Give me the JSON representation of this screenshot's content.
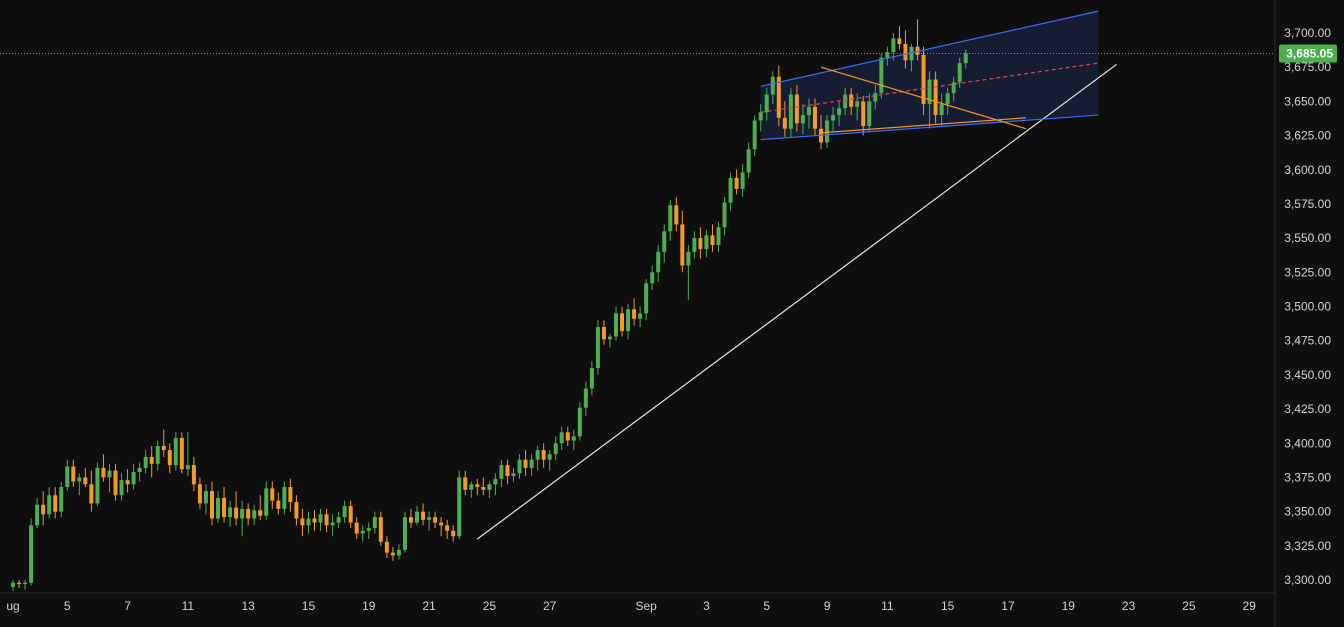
{
  "colors": {
    "background": "#0e0e0e",
    "up": "#4caf50",
    "down": "#f59a23",
    "trendline": "#e6e6e6",
    "channel": "#3d6bff",
    "channel_fill": "#1a2340",
    "channel_mid": "#e0455a",
    "wedge": "#f59a23",
    "last_price_line": "#4caf50",
    "axis_text": "#d1d4dc"
  },
  "chart_data": {
    "type": "candlestick",
    "title": "",
    "y_axis": {
      "range": [
        3290,
        3725
      ],
      "ticks": [
        "3,300.00",
        "3,325.00",
        "3,350.00",
        "3,375.00",
        "3,400.00",
        "3,425.00",
        "3,450.00",
        "3,475.00",
        "3,500.00",
        "3,525.00",
        "3,550.00",
        "3,575.00",
        "3,600.00",
        "3,625.00",
        "3,650.00",
        "3,675.00",
        "3,700.00"
      ]
    },
    "x_axis": {
      "labels": [
        "ug",
        "5",
        "7",
        "11",
        "13",
        "15",
        "19",
        "21",
        "25",
        "27",
        "Sep",
        "3",
        "5",
        "9",
        "11",
        "15",
        "17",
        "19",
        "23",
        "25",
        "29"
      ],
      "label_bar_index": [
        0,
        9,
        19,
        29,
        39,
        49,
        59,
        69,
        79,
        89,
        105,
        115,
        125,
        135,
        145,
        155,
        165,
        175,
        185,
        195,
        205
      ]
    },
    "last_price": 3685.05,
    "last_price_label": "3,685.05",
    "series": [
      {
        "values": [
          [
            3295,
            3300,
            3292,
            3298
          ],
          [
            3298,
            3300,
            3294,
            3297
          ],
          [
            3297,
            3300,
            3293,
            3298
          ],
          [
            3298,
            3345,
            3296,
            3340
          ],
          [
            3340,
            3360,
            3338,
            3355
          ],
          [
            3355,
            3365,
            3340,
            3348
          ],
          [
            3348,
            3368,
            3345,
            3362
          ],
          [
            3362,
            3368,
            3345,
            3350
          ],
          [
            3350,
            3372,
            3346,
            3368
          ],
          [
            3368,
            3388,
            3365,
            3383
          ],
          [
            3383,
            3388,
            3368,
            3372
          ],
          [
            3372,
            3378,
            3362,
            3375
          ],
          [
            3375,
            3382,
            3368,
            3370
          ],
          [
            3370,
            3380,
            3350,
            3356
          ],
          [
            3356,
            3386,
            3354,
            3382
          ],
          [
            3382,
            3392,
            3372,
            3375
          ],
          [
            3375,
            3385,
            3364,
            3380
          ],
          [
            3380,
            3385,
            3358,
            3362
          ],
          [
            3362,
            3378,
            3358,
            3373
          ],
          [
            3373,
            3381,
            3364,
            3370
          ],
          [
            3370,
            3385,
            3366,
            3379
          ],
          [
            3379,
            3386,
            3372,
            3382
          ],
          [
            3382,
            3395,
            3378,
            3390
          ],
          [
            3390,
            3398,
            3375,
            3385
          ],
          [
            3385,
            3402,
            3380,
            3398
          ],
          [
            3398,
            3410,
            3390,
            3395
          ],
          [
            3395,
            3400,
            3378,
            3384
          ],
          [
            3384,
            3408,
            3380,
            3404
          ],
          [
            3404,
            3408,
            3378,
            3381
          ],
          [
            3381,
            3408,
            3376,
            3384
          ],
          [
            3384,
            3390,
            3365,
            3370
          ],
          [
            3370,
            3375,
            3352,
            3356
          ],
          [
            3356,
            3370,
            3348,
            3365
          ],
          [
            3365,
            3372,
            3340,
            3345
          ],
          [
            3345,
            3365,
            3342,
            3360
          ],
          [
            3360,
            3368,
            3342,
            3346
          ],
          [
            3346,
            3358,
            3339,
            3353
          ],
          [
            3353,
            3365,
            3340,
            3345
          ],
          [
            3345,
            3358,
            3332,
            3352
          ],
          [
            3352,
            3356,
            3340,
            3345
          ],
          [
            3345,
            3355,
            3340,
            3351
          ],
          [
            3351,
            3362,
            3344,
            3347
          ],
          [
            3347,
            3372,
            3344,
            3367
          ],
          [
            3367,
            3372,
            3352,
            3358
          ],
          [
            3358,
            3364,
            3348,
            3352
          ],
          [
            3352,
            3372,
            3348,
            3368
          ],
          [
            3368,
            3374,
            3350,
            3357
          ],
          [
            3357,
            3362,
            3340,
            3345
          ],
          [
            3345,
            3352,
            3332,
            3340
          ],
          [
            3340,
            3350,
            3334,
            3345
          ],
          [
            3345,
            3351,
            3336,
            3342
          ],
          [
            3342,
            3352,
            3336,
            3348
          ],
          [
            3348,
            3352,
            3335,
            3340
          ],
          [
            3340,
            3348,
            3332,
            3342
          ],
          [
            3342,
            3350,
            3338,
            3346
          ],
          [
            3346,
            3358,
            3342,
            3354
          ],
          [
            3354,
            3358,
            3338,
            3342
          ],
          [
            3342,
            3346,
            3330,
            3334
          ],
          [
            3334,
            3340,
            3328,
            3336
          ],
          [
            3336,
            3342,
            3330,
            3338
          ],
          [
            3338,
            3350,
            3334,
            3346
          ],
          [
            3346,
            3350,
            3325,
            3328
          ],
          [
            3328,
            3332,
            3316,
            3320
          ],
          [
            3320,
            3324,
            3314,
            3318
          ],
          [
            3318,
            3326,
            3315,
            3322
          ],
          [
            3322,
            3350,
            3320,
            3346
          ],
          [
            3346,
            3352,
            3338,
            3342
          ],
          [
            3342,
            3354,
            3340,
            3350
          ],
          [
            3350,
            3356,
            3340,
            3344
          ],
          [
            3344,
            3350,
            3336,
            3346
          ],
          [
            3346,
            3350,
            3338,
            3342
          ],
          [
            3342,
            3346,
            3332,
            3340
          ],
          [
            3340,
            3344,
            3330,
            3336
          ],
          [
            3336,
            3340,
            3328,
            3332
          ],
          [
            3332,
            3380,
            3330,
            3375
          ],
          [
            3375,
            3380,
            3362,
            3366
          ],
          [
            3366,
            3372,
            3360,
            3370
          ],
          [
            3370,
            3374,
            3362,
            3368
          ],
          [
            3368,
            3375,
            3362,
            3366
          ],
          [
            3366,
            3372,
            3360,
            3370
          ],
          [
            3370,
            3378,
            3362,
            3374
          ],
          [
            3374,
            3388,
            3368,
            3384
          ],
          [
            3384,
            3388,
            3370,
            3376
          ],
          [
            3376,
            3382,
            3372,
            3378
          ],
          [
            3378,
            3392,
            3374,
            3388
          ],
          [
            3388,
            3395,
            3376,
            3382
          ],
          [
            3382,
            3392,
            3376,
            3388
          ],
          [
            3388,
            3398,
            3380,
            3395
          ],
          [
            3395,
            3400,
            3382,
            3388
          ],
          [
            3388,
            3395,
            3380,
            3392
          ],
          [
            3392,
            3405,
            3388,
            3400
          ],
          [
            3400,
            3412,
            3395,
            3408
          ],
          [
            3408,
            3412,
            3398,
            3402
          ],
          [
            3402,
            3410,
            3395,
            3405
          ],
          [
            3405,
            3430,
            3402,
            3426
          ],
          [
            3426,
            3445,
            3420,
            3440
          ],
          [
            3440,
            3460,
            3435,
            3455
          ],
          [
            3455,
            3490,
            3450,
            3485
          ],
          [
            3485,
            3490,
            3472,
            3476
          ],
          [
            3476,
            3480,
            3470,
            3478
          ],
          [
            3478,
            3500,
            3475,
            3495
          ],
          [
            3495,
            3500,
            3478,
            3482
          ],
          [
            3482,
            3502,
            3476,
            3498
          ],
          [
            3498,
            3506,
            3486,
            3491
          ],
          [
            3491,
            3500,
            3485,
            3495
          ],
          [
            3495,
            3520,
            3490,
            3517
          ],
          [
            3517,
            3530,
            3512,
            3525
          ],
          [
            3525,
            3545,
            3518,
            3540
          ],
          [
            3540,
            3560,
            3532,
            3555
          ],
          [
            3555,
            3578,
            3548,
            3574
          ],
          [
            3574,
            3580,
            3555,
            3560
          ],
          [
            3560,
            3570,
            3525,
            3530
          ],
          [
            3530,
            3545,
            3505,
            3540
          ],
          [
            3540,
            3555,
            3535,
            3550
          ],
          [
            3550,
            3558,
            3535,
            3542
          ],
          [
            3542,
            3556,
            3536,
            3552
          ],
          [
            3552,
            3560,
            3540,
            3545
          ],
          [
            3545,
            3562,
            3540,
            3558
          ],
          [
            3558,
            3580,
            3552,
            3576
          ],
          [
            3576,
            3598,
            3570,
            3594
          ],
          [
            3594,
            3600,
            3582,
            3586
          ],
          [
            3586,
            3604,
            3580,
            3598
          ],
          [
            3598,
            3620,
            3594,
            3615
          ],
          [
            3615,
            3640,
            3610,
            3636
          ],
          [
            3636,
            3648,
            3628,
            3642
          ],
          [
            3642,
            3660,
            3636,
            3655
          ],
          [
            3655,
            3672,
            3648,
            3668
          ],
          [
            3668,
            3676,
            3632,
            3638
          ],
          [
            3638,
            3650,
            3624,
            3630
          ],
          [
            3630,
            3660,
            3624,
            3655
          ],
          [
            3655,
            3662,
            3628,
            3634
          ],
          [
            3634,
            3648,
            3626,
            3640
          ],
          [
            3640,
            3652,
            3630,
            3646
          ],
          [
            3646,
            3652,
            3625,
            3630
          ],
          [
            3630,
            3640,
            3615,
            3620
          ],
          [
            3620,
            3640,
            3616,
            3636
          ],
          [
            3636,
            3646,
            3628,
            3640
          ],
          [
            3640,
            3650,
            3632,
            3645
          ],
          [
            3645,
            3660,
            3640,
            3655
          ],
          [
            3655,
            3660,
            3640,
            3646
          ],
          [
            3646,
            3656,
            3636,
            3650
          ],
          [
            3650,
            3654,
            3625,
            3632
          ],
          [
            3632,
            3656,
            3628,
            3650
          ],
          [
            3650,
            3662,
            3644,
            3656
          ],
          [
            3656,
            3685,
            3652,
            3682
          ],
          [
            3682,
            3690,
            3676,
            3686
          ],
          [
            3686,
            3700,
            3680,
            3696
          ],
          [
            3696,
            3705,
            3688,
            3692
          ],
          [
            3692,
            3702,
            3674,
            3680
          ],
          [
            3680,
            3692,
            3672,
            3690
          ],
          [
            3690,
            3710,
            3680,
            3684
          ],
          [
            3684,
            3690,
            3640,
            3648
          ],
          [
            3648,
            3672,
            3630,
            3666
          ],
          [
            3666,
            3672,
            3634,
            3640
          ],
          [
            3640,
            3656,
            3632,
            3648
          ],
          [
            3648,
            3660,
            3640,
            3656
          ],
          [
            3656,
            3668,
            3650,
            3664
          ],
          [
            3664,
            3682,
            3660,
            3678
          ],
          [
            3678,
            3688,
            3674,
            3685.05
          ]
        ]
      }
    ],
    "drawings": {
      "trendline": {
        "from": [
          77,
          3330
        ],
        "to": [
          183,
          3677
        ]
      },
      "channel_upper": {
        "from": [
          124,
          3661
        ],
        "to": [
          180,
          3716
        ]
      },
      "channel_lower": {
        "from": [
          124,
          3622
        ],
        "to": [
          180,
          3640
        ]
      },
      "channel_mid": {
        "from": [
          124,
          3642
        ],
        "to": [
          180,
          3678
        ]
      },
      "wedge_upper": {
        "from": [
          134,
          3675
        ],
        "to": [
          168,
          3630
        ]
      },
      "wedge_lower": {
        "from": [
          134,
          3627
        ],
        "to": [
          168,
          3638
        ]
      }
    }
  }
}
